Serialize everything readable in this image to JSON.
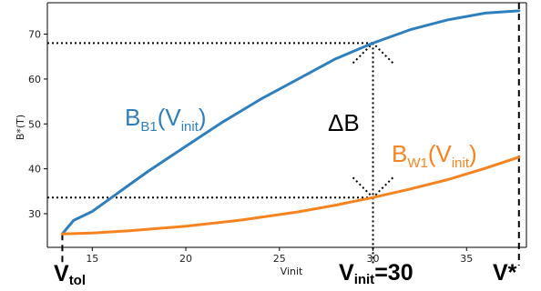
{
  "chart_data": {
    "type": "line",
    "xlabel": "Vinit",
    "ylabel": "B*(T)",
    "xlim": [
      12.6,
      38.2
    ],
    "ylim": [
      22.5,
      77.0
    ],
    "x_ticks": [
      "15",
      "20",
      "25",
      "30",
      "35"
    ],
    "y_ticks": [
      "30",
      "40",
      "50",
      "60",
      "70"
    ],
    "grid": false,
    "series": [
      {
        "label_main": "B",
        "label_sub": "B1",
        "label_arg_pre": "(V",
        "label_arg_sub": "init",
        "label_arg_post": ")",
        "color": "#2f7fbd",
        "x": [
          13.4,
          14,
          15,
          16,
          17,
          18,
          20,
          22,
          24,
          26,
          28,
          30,
          32,
          34,
          36,
          37.8
        ],
        "y": [
          25.5,
          28.5,
          30.5,
          33.5,
          36.5,
          39.5,
          45.0,
          50.5,
          55.5,
          60.0,
          64.5,
          68.0,
          71.0,
          73.2,
          74.7,
          75.2
        ]
      },
      {
        "label_main": "B",
        "label_sub": "W1",
        "label_arg_pre": "(V",
        "label_arg_sub": "init",
        "label_arg_post": ")",
        "color": "#f58420",
        "x": [
          13.4,
          15,
          17,
          20,
          23,
          26,
          28,
          30,
          32,
          34,
          36,
          37.8
        ],
        "y": [
          25.5,
          25.7,
          26.2,
          27.2,
          28.6,
          30.4,
          31.9,
          33.6,
          35.5,
          37.6,
          40.1,
          42.6
        ]
      }
    ],
    "annotations": {
      "delta_b": "ΔB",
      "x_tol_main": "V",
      "x_tol_sub": "tol",
      "x_init_main": "V",
      "x_init_sub": "init",
      "x_init_value": "=30",
      "x_star": "V*",
      "x_tol": 13.4,
      "x_init": 30,
      "x_star_value": 37.8
    }
  }
}
